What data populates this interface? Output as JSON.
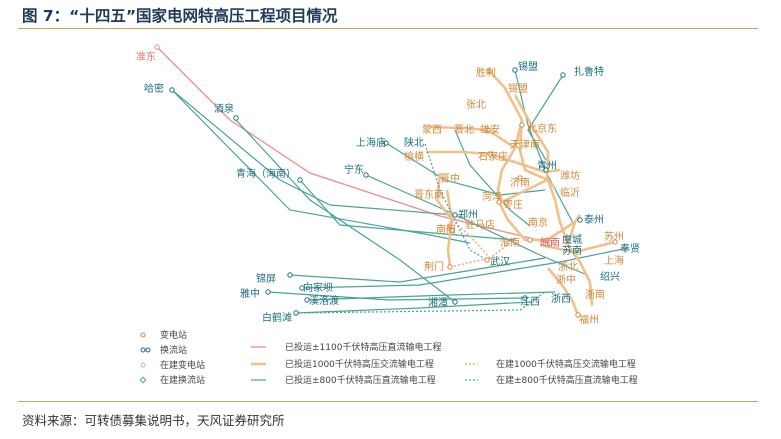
{
  "header": {
    "title": "图 7：“十四五”国家电网特高压工程项目情况"
  },
  "footer": {
    "source": "资料来源：可转债募集说明书，天风证券研究所"
  },
  "colors": {
    "uhv_dc_1100": "#f08c8c",
    "uhv_ac_1000": "#f2c08a",
    "uhv_dc_800": "#4aa39a",
    "ac_planned": "#e8b27a",
    "dc_planned": "#4aa39a",
    "label_teal": "#1c6f80",
    "label_orange": "#d18a3a"
  },
  "legend": [
    {
      "label": "变电站",
      "symbol": "substation"
    },
    {
      "label": "换流站",
      "symbol": "converter"
    },
    {
      "label": "在建变电站",
      "symbol": "substation-building"
    },
    {
      "label": "在建换流站",
      "symbol": "converter-building"
    },
    {
      "label": "已投运±1100千伏特高压直流输电工程",
      "symbol": "line-dc1100"
    },
    {
      "label": "已投运1000千伏特高压交流输电工程",
      "symbol": "line-ac1000"
    },
    {
      "label": "已投运±800千伏特高压直流输电工程",
      "symbol": "line-dc800"
    },
    {
      "label": "在建1000千伏特高压交流输电工程",
      "symbol": "line-ac-building"
    },
    {
      "label": "在建±800千伏特高压直流输电工程",
      "symbol": "line-dc-building"
    }
  ],
  "cities": {
    "zhundong": "准东",
    "hami": "哈密",
    "jiuquan": "酒泉",
    "qinghai": "青海（海南）",
    "shanghaimiao": "上海庙",
    "ningdong": "宁东",
    "shengli": "胜利",
    "ximeng": "锡盟",
    "zhalute": "扎鲁特",
    "xilinhaote": "锡盟",
    "zhangbei": "张北",
    "beijingdong": "北京东",
    "shanbei": "陕北",
    "mengxi": "蒙西",
    "jinbei": "晋北",
    "xiongan": "雄安",
    "tianjinnan": "天津南",
    "yuheng": "榆横",
    "shijiazhuang": "石家庄",
    "qingzhou": "青州",
    "weifang": "潍坊",
    "jizhong": "晋中",
    "jinan": "济南",
    "linyi": "临沂",
    "jindongnan": "晋东南",
    "heze": "菏泽",
    "zaozhuang": "枣庄",
    "zhengzhou": "郑州",
    "nanyang": "南阳",
    "zhumadian": "驻马店",
    "nanjing": "南京",
    "taizhou": "泰州",
    "huainan": "淮南",
    "wannan": "皖南",
    "yucheng": "虞城",
    "suzhou": "苏州",
    "sunan": "苏南",
    "fengxian": "奉贤",
    "shanghai": "上海",
    "jingmen": "荆门",
    "wuhan": "武汉",
    "zhexi": "浙北",
    "shaoxing": "绍兴",
    "huzhong": "浙中",
    "zhenan": "浙南",
    "jinping": "锦屏",
    "xiangjiaba": "向家坝",
    "yazhong": "雅中",
    "xiluodu": "溪洛渡",
    "baihetan": "白鹤滩",
    "xiangtan": "湘潭",
    "jiangxi": "江西",
    "zhexi2": "浙西",
    "fuzhou": "福州"
  }
}
